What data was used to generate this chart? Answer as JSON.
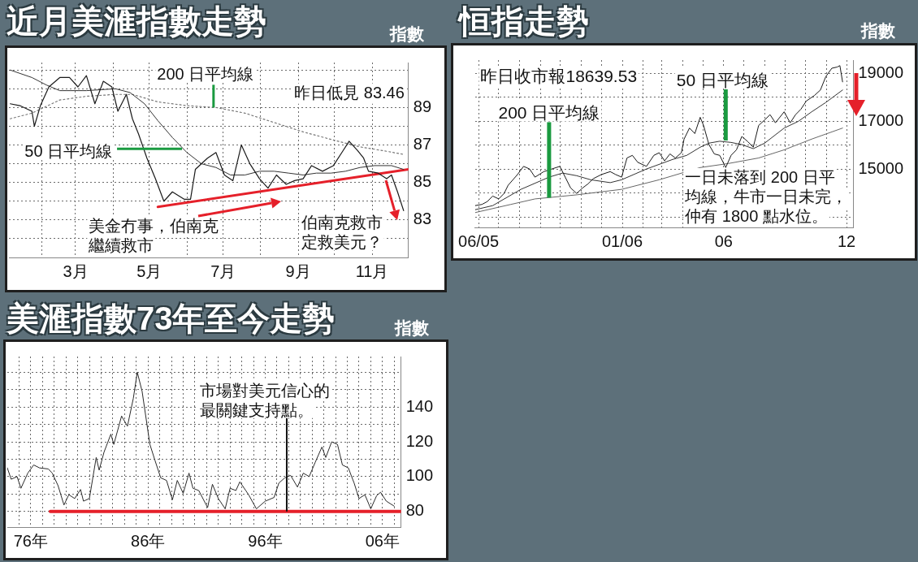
{
  "chart_data": [
    {
      "type": "line",
      "title": "近月美滙指數走勢",
      "ylabel": "指數",
      "grid": true,
      "marker": "none",
      "xlim": [
        "--01-05",
        "--12-01"
      ],
      "xticks": [
        {
          "value": "--02-01",
          "label": null
        },
        {
          "value": "--03-01",
          "label": "3月"
        },
        {
          "value": "--04-01",
          "label": null
        },
        {
          "value": "--05-01",
          "label": "5月"
        },
        {
          "value": "--06-01",
          "label": null
        },
        {
          "value": "--07-01",
          "label": "7月"
        },
        {
          "value": "--08-01",
          "label": null
        },
        {
          "value": "--09-01",
          "label": "9月"
        },
        {
          "value": "--10-01",
          "label": null
        },
        {
          "value": "--11-01",
          "label": "11月"
        },
        {
          "value": "--12-01",
          "label": null
        }
      ],
      "ylim": [
        81,
        91.4
      ],
      "yticks": [
        {
          "value": 82,
          "label": null
        },
        83,
        {
          "value": 84,
          "label": null
        },
        85,
        {
          "value": 86,
          "label": null
        },
        87,
        {
          "value": 88,
          "label": null
        },
        89,
        {
          "value": 90,
          "label": null
        },
        {
          "value": 91,
          "label": null
        }
      ],
      "series": [
        {
          "color": "#1a1a1a",
          "line_style": "solid",
          "x": [
            "--01-06",
            "--01-14",
            "--01-24",
            "--01-26",
            "--01-31",
            "--02-07",
            "--02-16",
            "--02-24",
            "--03-03",
            "--03-10",
            "--03-17",
            "--03-24",
            "--03-31",
            "--04-05",
            "--04-12",
            "--04-17",
            "--04-22",
            "--04-29",
            "--05-06",
            "--05-13",
            "--05-20",
            "--05-30",
            "--06-04",
            "--06-08",
            "--06-18",
            "--06-25",
            "--07-02",
            "--07-09",
            "--07-16",
            "--07-23",
            "--07-31",
            "--08-07",
            "--08-14",
            "--08-22",
            "--08-29",
            "--09-05",
            "--09-12",
            "--09-21",
            "--09-30",
            "--10-08",
            "--10-13",
            "--10-20",
            "--10-25",
            "--10-29",
            "--11-06",
            "--11-13",
            "--11-17",
            "--11-22",
            "--11-27"
          ],
          "values": [
            89.2,
            89.1,
            88.8,
            88.0,
            89.1,
            90.1,
            90.6,
            90.6,
            90.1,
            90.7,
            89.2,
            90.4,
            90.1,
            88.8,
            89.7,
            88.4,
            87.6,
            86.3,
            85.2,
            84.0,
            84.5,
            84.1,
            84.1,
            85.7,
            86.3,
            86.6,
            85.4,
            85.1,
            87.0,
            86.0,
            85.2,
            84.7,
            85.4,
            84.9,
            85.1,
            85.2,
            85.9,
            85.6,
            85.9,
            86.7,
            87.2,
            86.7,
            86.3,
            85.6,
            85.5,
            85.2,
            85.4,
            84.5,
            83.5
          ]
        },
        {
          "color": "#333333",
          "line_style": "solid",
          "x": [
            "--01-06",
            "--01-24",
            "--02-05",
            "--02-16",
            "--03-10",
            "--04-03",
            "--04-15",
            "--04-27",
            "--05-08",
            "--05-20",
            "--06-01",
            "--06-13",
            "--06-25",
            "--07-07",
            "--07-19",
            "--07-31",
            "--08-12",
            "--08-24",
            "--09-05",
            "--09-16",
            "--09-28",
            "--10-10",
            "--10-22",
            "--11-03",
            "--11-17",
            "--11-27"
          ],
          "values": [
            91.0,
            90.6,
            90.2,
            89.9,
            89.9,
            90.0,
            89.8,
            89.2,
            88.3,
            87.4,
            86.6,
            86.0,
            85.8,
            85.4,
            85.4,
            85.6,
            85.6,
            85.5,
            85.4,
            85.5,
            85.5,
            85.6,
            85.8,
            85.9,
            85.9,
            85.7
          ]
        },
        {
          "color": "#777777",
          "line_style": "dotted",
          "x": [
            "--01-06",
            "--01-24",
            "--02-16",
            "--03-10",
            "--04-03",
            "--04-17",
            "--05-08",
            "--06-01",
            "--06-25",
            "--07-19",
            "--08-12",
            "--09-05",
            "--09-28",
            "--10-22",
            "--11-10",
            "--11-27"
          ],
          "values": [
            88.4,
            88.7,
            89.4,
            89.6,
            89.7,
            89.7,
            89.3,
            89.1,
            89.0,
            88.7,
            88.2,
            87.7,
            87.3,
            86.9,
            86.7,
            86.5
          ]
        },
        {
          "color": "#e5202a",
          "line_style": "solid",
          "x": [
            "--05-08",
            "--12-01"
          ],
          "values": [
            83.7,
            85.7
          ]
        }
      ],
      "annotations": [
        {
          "text": "200 日平均線",
          "x": "--06-23",
          "y": 89.0
        },
        {
          "text": "50 日平均線",
          "x": "--05-28",
          "y": 86.8
        },
        "昨日低見 83.46",
        "美金冇事，伯南克繼續救市",
        {
          "text": "伯南克救市定救美元？",
          "x": "--11-27",
          "y": 83.5
        }
      ]
    },
    {
      "type": "line",
      "title": "恒指走勢",
      "ylabel": "指數",
      "grid": true,
      "marker": "none",
      "xlim": [
        "2005-05-27",
        "2006-12-11"
      ],
      "xticks": [
        {
          "value": "2005-06-01",
          "label": "06/05"
        },
        {
          "value": "2005-07-01",
          "label": null
        },
        {
          "value": "2005-08-01",
          "label": null
        },
        {
          "value": "2005-09-01",
          "label": null
        },
        {
          "value": "2005-10-01",
          "label": null
        },
        {
          "value": "2005-11-01",
          "label": null
        },
        {
          "value": "2005-12-01",
          "label": null
        },
        {
          "value": "2006-01-01",
          "label": "01/06"
        },
        {
          "value": "2006-02-01",
          "label": null
        },
        {
          "value": "2006-03-01",
          "label": null
        },
        {
          "value": "2006-04-01",
          "label": null
        },
        {
          "value": "2006-05-01",
          "label": null
        },
        {
          "value": "2006-06-01",
          "label": "06"
        },
        {
          "value": "2006-07-01",
          "label": null
        },
        {
          "value": "2006-08-01",
          "label": null
        },
        {
          "value": "2006-09-01",
          "label": null
        },
        {
          "value": "2006-10-01",
          "label": null
        },
        {
          "value": "2006-11-01",
          "label": null
        },
        {
          "value": "2006-12-01",
          "label": "12"
        }
      ],
      "ylim": [
        12560,
        19550
      ],
      "yticks": [
        {
          "value": 13000,
          "label": null
        },
        {
          "value": 14000,
          "label": null
        },
        15000,
        {
          "value": 16000,
          "label": null
        },
        17000,
        {
          "value": 18000,
          "label": null
        },
        19000
      ],
      "series": [
        {
          "color": "#1a1a1a",
          "line_style": "solid",
          "x": [
            "2005-05-27",
            "2005-06-06",
            "2005-06-14",
            "2005-06-22",
            "2005-07-01",
            "2005-07-09",
            "2005-07-15",
            "2005-07-29",
            "2005-08-07",
            "2005-08-16",
            "2005-08-24",
            "2005-09-06",
            "2005-09-18",
            "2005-09-30",
            "2005-10-08",
            "2005-10-16",
            "2005-10-25",
            "2005-11-03",
            "2005-11-11",
            "2005-11-19",
            "2005-12-01",
            "2005-12-14",
            "2005-12-22",
            "2005-12-31",
            "2006-01-08",
            "2006-01-16",
            "2006-01-24",
            "2006-02-06",
            "2006-02-17",
            "2006-02-25",
            "2006-03-05",
            "2006-03-13",
            "2006-03-21",
            "2006-03-30",
            "2006-04-03",
            "2006-04-11",
            "2006-04-19",
            "2006-04-27",
            "2006-05-02",
            "2006-05-10",
            "2006-05-18",
            "2006-05-26",
            "2006-06-04",
            "2006-06-12",
            "2006-06-20",
            "2006-06-28",
            "2006-07-07",
            "2006-07-15",
            "2006-07-23",
            "2006-08-01",
            "2006-08-09",
            "2006-08-17",
            "2006-08-30",
            "2006-09-08",
            "2006-09-16",
            "2006-09-24",
            "2006-10-02",
            "2006-10-14",
            "2006-10-23",
            "2006-10-31",
            "2006-11-09",
            "2006-11-17",
            "2006-11-21",
            "2006-11-25"
          ],
          "values": [
            13470,
            13520,
            13640,
            13870,
            13750,
            13980,
            14320,
            14770,
            15110,
            15000,
            14660,
            14890,
            15000,
            15110,
            14660,
            14210,
            13980,
            14210,
            14380,
            14600,
            14770,
            14890,
            14770,
            14660,
            15460,
            15570,
            15280,
            15110,
            15570,
            15680,
            15340,
            15630,
            15460,
            15680,
            16250,
            16710,
            16480,
            17160,
            16820,
            16020,
            15630,
            15570,
            15060,
            15570,
            15800,
            16360,
            16140,
            15910,
            16820,
            17050,
            17270,
            16930,
            17390,
            16930,
            17270,
            17500,
            17840,
            18070,
            18300,
            18860,
            19210,
            19260,
            19320,
            18640
          ]
        },
        {
          "color": "#333333",
          "line_style": "solid",
          "x": [
            "2005-05-27",
            "2005-06-22",
            "2005-08-03",
            "2005-09-14",
            "2005-10-04",
            "2005-10-25",
            "2005-11-15",
            "2005-12-14",
            "2005-12-31",
            "2006-02-06",
            "2006-03-17",
            "2006-04-07",
            "2006-04-27",
            "2006-05-10",
            "2006-05-26",
            "2006-06-12",
            "2006-06-28",
            "2006-07-15",
            "2006-08-01",
            "2006-08-30",
            "2006-09-20",
            "2006-10-10",
            "2006-10-31",
            "2006-11-25"
          ],
          "values": [
            13300,
            13470,
            14150,
            14660,
            14830,
            14720,
            14550,
            14430,
            14550,
            15000,
            15400,
            15570,
            15910,
            16080,
            16160,
            16110,
            16020,
            15850,
            16080,
            16710,
            16990,
            17390,
            17780,
            18300
          ]
        },
        {
          "color": "#666666",
          "line_style": "solid",
          "x": [
            "2005-05-27",
            "2005-07-19",
            "2005-08-24",
            "2005-10-25",
            "2005-12-31",
            "2006-02-25",
            "2006-04-27",
            "2006-06-08",
            "2006-07-23",
            "2006-08-30",
            "2006-10-10",
            "2006-11-25"
          ],
          "values": [
            13180,
            13520,
            13750,
            13920,
            14150,
            14550,
            15060,
            15230,
            15460,
            15800,
            16250,
            16710
          ]
        }
      ],
      "annotations": [
        "昨日收市報18639.53",
        {
          "text": "200 日平均線",
          "x": "2005-09-14",
          "y": 13800
        },
        {
          "text": "50 日平均線",
          "x": "2006-06-04",
          "y": 16190
        },
        "一日未落到 200 日平均線，牛市一日未完，仲有 1800 點水位。"
      ]
    },
    {
      "type": "line",
      "title": "美滙指數73年至今走勢",
      "ylabel": "指數",
      "grid": true,
      "marker": "none",
      "xlim": [
        "1974-01",
        "2007-08"
      ],
      "xticks": [
        {
          "value": "1975",
          "label": null
        },
        {
          "value": "1976",
          "label": "76年"
        },
        {
          "value": "1977",
          "label": null
        },
        {
          "value": "1978",
          "label": null
        },
        {
          "value": "1979",
          "label": null
        },
        {
          "value": "1980",
          "label": null
        },
        {
          "value": "1981",
          "label": null
        },
        {
          "value": "1982",
          "label": null
        },
        {
          "value": "1983",
          "label": null
        },
        {
          "value": "1984",
          "label": null
        },
        {
          "value": "1985",
          "label": null
        },
        {
          "value": "1986",
          "label": "86年"
        },
        {
          "value": "1987",
          "label": null
        },
        {
          "value": "1988",
          "label": null
        },
        {
          "value": "1989",
          "label": null
        },
        {
          "value": "1990",
          "label": null
        },
        {
          "value": "1991",
          "label": null
        },
        {
          "value": "1992",
          "label": null
        },
        {
          "value": "1993",
          "label": null
        },
        {
          "value": "1994",
          "label": null
        },
        {
          "value": "1995",
          "label": null
        },
        {
          "value": "1996",
          "label": "96年"
        },
        {
          "value": "1997",
          "label": null
        },
        {
          "value": "1998",
          "label": null
        },
        {
          "value": "1999",
          "label": null
        },
        {
          "value": "2000",
          "label": null
        },
        {
          "value": "2001",
          "label": null
        },
        {
          "value": "2002",
          "label": null
        },
        {
          "value": "2003",
          "label": null
        },
        {
          "value": "2004",
          "label": null
        },
        {
          "value": "2005",
          "label": null
        },
        {
          "value": "2006",
          "label": "06年"
        },
        {
          "value": "2007",
          "label": null
        }
      ],
      "ylim": [
        71,
        169
      ],
      "yticks": [
        80,
        {
          "value": 90,
          "label": null
        },
        100,
        {
          "value": 110,
          "label": null
        },
        120,
        {
          "value": 130,
          "label": null
        },
        140,
        {
          "value": 150,
          "label": null
        },
        {
          "value": 160,
          "label": null
        }
      ],
      "series": [
        {
          "color": "#2a2a2a",
          "line_style": "solid",
          "x": [
            "1974-01",
            "1974-05",
            "1974-11",
            "1975-03",
            "1975-10",
            "1976-04",
            "1976-10",
            "1977-07",
            "1977-11",
            "1978-05",
            "1978-11",
            "1979-04",
            "1979-10",
            "1980-04",
            "1980-07",
            "1981-01",
            "1981-08",
            "1981-11",
            "1982-04",
            "1982-11",
            "1983-02",
            "1983-10",
            "1984-04",
            "1984-10",
            "1985-02",
            "1985-07",
            "1986-03",
            "1986-08",
            "1987-02",
            "1987-08",
            "1988-02",
            "1988-07",
            "1989-01",
            "1989-07",
            "1989-11",
            "1990-05",
            "1991-02",
            "1991-07",
            "1992-01",
            "1992-08",
            "1993-01",
            "1993-07",
            "1993-11",
            "1994-08",
            "1995-04",
            "1996-01",
            "1996-10",
            "1997-03",
            "1997-09",
            "1998-03",
            "1998-10",
            "1999-04",
            "1999-10",
            "2000-04",
            "2000-11",
            "2001-03",
            "2001-09",
            "2002-03",
            "2002-08",
            "2003-02",
            "2003-08",
            "2004-01",
            "2004-07",
            "2005-01",
            "2005-07",
            "2005-11",
            "2006-05",
            "2007-01"
          ],
          "values": [
            105,
            98.5,
            100,
            93.3,
            102,
            106.7,
            105,
            104.4,
            102,
            94.8,
            83.7,
            89.6,
            87.4,
            92.6,
            85.9,
            87.4,
            111,
            103.7,
            114,
            124.4,
            118.5,
            134.8,
            129,
            145,
            160,
            149,
            118.5,
            109.6,
            99.3,
            97.8,
            86.7,
            97.8,
            90.4,
            102,
            93.3,
            92,
            82.2,
            95.6,
            87.4,
            81.5,
            93.3,
            92,
            97,
            89.6,
            81.5,
            85.9,
            88,
            96.3,
            99.3,
            100.7,
            94,
            102,
            100,
            108,
            117,
            111,
            120,
            118.5,
            106.7,
            105,
            96.3,
            87.4,
            89.6,
            81.5,
            89,
            91,
            85.9,
            83
          ]
        },
        {
          "color": "#e5202a",
          "line_style": "solid",
          "x": [
            "1977-09",
            "2007-08"
          ],
          "values": [
            80,
            80
          ]
        }
      ],
      "annotations": [
        {
          "text": "市場對美元信心的最關鍵支持點。",
          "x": "1997-11",
          "y": 80
        }
      ]
    }
  ]
}
